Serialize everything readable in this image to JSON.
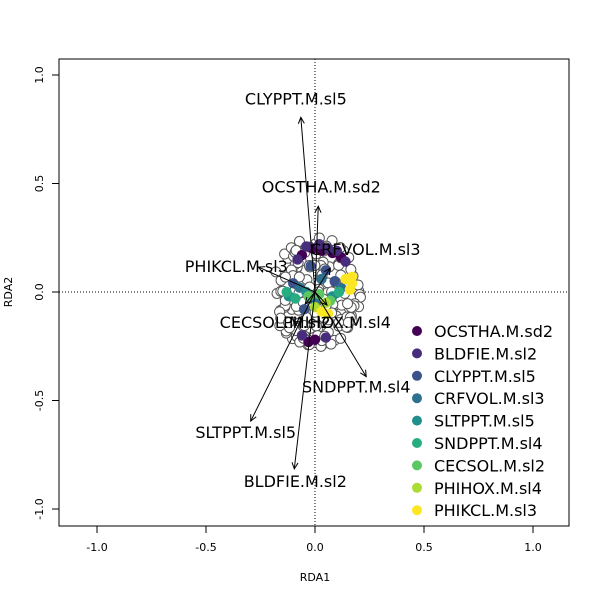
{
  "chart_data": {
    "type": "scatter",
    "title": "",
    "xlabel": "RDA1",
    "ylabel": "RDA2",
    "xlim": [
      -1.0,
      1.0
    ],
    "ylim": [
      -1.0,
      1.0
    ],
    "xticks": [
      "-1.0",
      "-0.5",
      "0.0",
      "0.5",
      "1.0"
    ],
    "yticks": [
      "-1.0",
      "-0.5",
      "0.0",
      "0.5",
      "1.0"
    ],
    "reference_lines": {
      "x": 0,
      "y": 0,
      "style": "dotted"
    },
    "arrows": [
      {
        "label": "CLYPPT.M.sl5",
        "x": -0.065,
        "y": 0.805
      },
      {
        "label": "OCSTHA.M.sd2",
        "x": 0.015,
        "y": 0.395
      },
      {
        "label": "PHIKCL.M.sl3",
        "x": -0.26,
        "y": 0.115
      },
      {
        "label": "CRFVOL.M.sl3",
        "x": 0.07,
        "y": 0.11
      },
      {
        "label": "PHIHOX.M.sl4",
        "x": 0.055,
        "y": -0.06
      },
      {
        "label": "CECSOL.M.sl2",
        "x": -0.045,
        "y": -0.055
      },
      {
        "label": "SNDPPT.M.sl4",
        "x": 0.235,
        "y": -0.39
      },
      {
        "label": "SLTPPT.M.sl5",
        "x": -0.295,
        "y": -0.595
      },
      {
        "label": "BLDFIE.M.sl2",
        "x": -0.095,
        "y": -0.815
      }
    ],
    "legend": {
      "position": "bottom-right",
      "entries": [
        {
          "label": "OCSTHA.M.sd2",
          "color": "#440154"
        },
        {
          "label": "BLDFIE.M.sl2",
          "color": "#472D7B"
        },
        {
          "label": "CLYPPT.M.sl5",
          "color": "#3B528B"
        },
        {
          "label": "CRFVOL.M.sl3",
          "color": "#2C728E"
        },
        {
          "label": "SLTPPT.M.sl5",
          "color": "#21908C"
        },
        {
          "label": "SNDPPT.M.sl4",
          "color": "#27AD81"
        },
        {
          "label": "CECSOL.M.sl2",
          "color": "#5DC863"
        },
        {
          "label": "PHIHOX.M.sl4",
          "color": "#AADC32"
        },
        {
          "label": "PHIKCL.M.sl3",
          "color": "#FDE725"
        }
      ]
    },
    "points": {
      "description_count_gray": 180,
      "gray_center": [
        0.0,
        0.0
      ],
      "gray_radius": [
        0.21,
        0.26
      ],
      "colored": [
        {
          "x": -0.01,
          "y": 0.2,
          "group": 0
        },
        {
          "x": 0.03,
          "y": 0.19,
          "group": 0
        },
        {
          "x": 0.08,
          "y": 0.18,
          "group": 0
        },
        {
          "x": -0.06,
          "y": 0.17,
          "group": 0
        },
        {
          "x": 0.12,
          "y": 0.16,
          "group": 0
        },
        {
          "x": -0.03,
          "y": -0.23,
          "group": 0
        },
        {
          "x": 0.0,
          "y": -0.22,
          "group": 0
        },
        {
          "x": 0.02,
          "y": 0.22,
          "group": 1
        },
        {
          "x": -0.04,
          "y": 0.21,
          "group": 1
        },
        {
          "x": 0.06,
          "y": 0.2,
          "group": 1
        },
        {
          "x": 0.1,
          "y": 0.19,
          "group": 1
        },
        {
          "x": -0.08,
          "y": 0.15,
          "group": 1
        },
        {
          "x": 0.14,
          "y": 0.14,
          "group": 1
        },
        {
          "x": -0.06,
          "y": -0.2,
          "group": 1
        },
        {
          "x": 0.05,
          "y": -0.21,
          "group": 1
        },
        {
          "x": -0.02,
          "y": 0.12,
          "group": 2
        },
        {
          "x": 0.05,
          "y": 0.1,
          "group": 2
        },
        {
          "x": -0.1,
          "y": 0.04,
          "group": 2
        },
        {
          "x": 0.09,
          "y": 0.05,
          "group": 2
        },
        {
          "x": -0.05,
          "y": -0.08,
          "group": 2
        },
        {
          "x": 0.03,
          "y": 0.06,
          "group": 3
        },
        {
          "x": -0.07,
          "y": 0.02,
          "group": 3
        },
        {
          "x": 0.12,
          "y": 0.02,
          "group": 3
        },
        {
          "x": 0.0,
          "y": -0.04,
          "group": 3
        },
        {
          "x": -0.12,
          "y": -0.02,
          "group": 4
        },
        {
          "x": -0.04,
          "y": 0.0,
          "group": 4
        },
        {
          "x": 0.08,
          "y": -0.02,
          "group": 4
        },
        {
          "x": -0.13,
          "y": 0.0,
          "group": 5
        },
        {
          "x": -0.09,
          "y": -0.03,
          "group": 5
        },
        {
          "x": 0.11,
          "y": 0.0,
          "group": 5
        },
        {
          "x": -0.03,
          "y": -0.02,
          "group": 6
        },
        {
          "x": 0.02,
          "y": -0.01,
          "group": 6
        },
        {
          "x": 0.07,
          "y": -0.04,
          "group": 6
        },
        {
          "x": 0.0,
          "y": -0.07,
          "group": 7
        },
        {
          "x": 0.05,
          "y": -0.05,
          "group": 7
        },
        {
          "x": 0.14,
          "y": 0.06,
          "group": 8
        },
        {
          "x": 0.17,
          "y": 0.04,
          "group": 8
        },
        {
          "x": 0.16,
          "y": 0.01,
          "group": 8
        },
        {
          "x": 0.03,
          "y": -0.09,
          "group": 8
        },
        {
          "x": 0.06,
          "y": -0.1,
          "group": 8
        },
        {
          "x": 0.17,
          "y": 0.07,
          "group": 8
        }
      ]
    }
  }
}
